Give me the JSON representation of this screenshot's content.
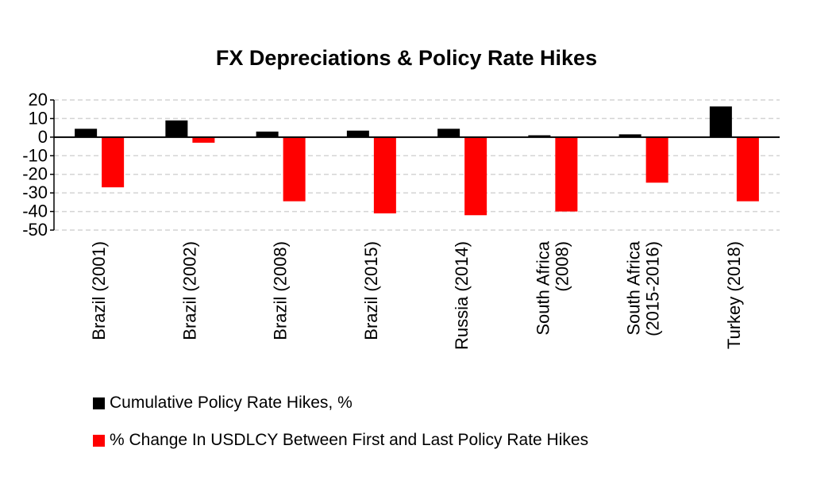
{
  "chart_data": {
    "type": "bar",
    "title": "FX Depreciations & Policy Rate Hikes",
    "categories": [
      [
        "Brazil (2001)"
      ],
      [
        "Brazil (2002)"
      ],
      [
        "Brazil (2008)"
      ],
      [
        "Brazil (2015)"
      ],
      [
        "Russia (2014)"
      ],
      [
        "South Africa",
        "(2008)"
      ],
      [
        "South Africa",
        "(2015-2016)"
      ],
      [
        "Turkey (2018)"
      ]
    ],
    "series": [
      {
        "name": "Cumulative Policy Rate Hikes, %",
        "color": "#000000",
        "values": [
          4.5,
          9,
          3,
          3.5,
          4.5,
          1,
          1.5,
          16.5
        ]
      },
      {
        "name": "% Change In USDLCY Between First and Last Policy Rate Hikes",
        "color": "#ff0000",
        "values": [
          -27,
          -3,
          -34.5,
          -41,
          -42,
          -40,
          -24.5,
          -34.5
        ]
      }
    ],
    "yticks": [
      "20",
      "10",
      "0",
      "-10",
      "-20",
      "-30",
      "-40",
      "-50"
    ],
    "ylim": [
      -50,
      20
    ],
    "grid": true,
    "legend_position": "bottom-left"
  }
}
